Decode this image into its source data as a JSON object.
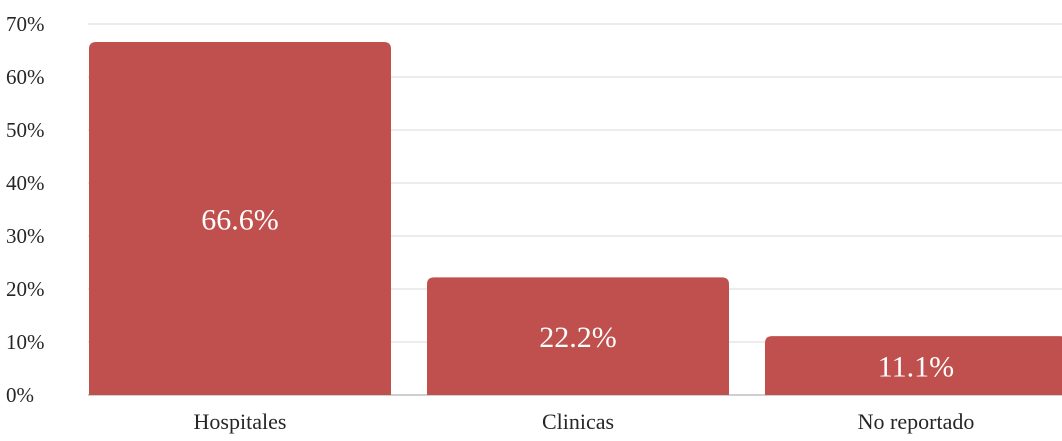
{
  "chart_data": {
    "type": "bar",
    "categories": [
      "Hospitales",
      "Clinicas",
      "No reportado"
    ],
    "values": [
      66.6,
      22.2,
      11.1
    ],
    "data_labels": [
      "66.6%",
      "22.2%",
      "11.1%"
    ],
    "yticks": [
      "0%",
      "10%",
      "20%",
      "30%",
      "40%",
      "50%",
      "60%",
      "70%"
    ],
    "ylim": [
      0,
      70
    ],
    "grid": true,
    "colors": {
      "bar": "#c0504d",
      "grid": "#d9d9d9",
      "text": "#262626",
      "data_label": "#ffffff"
    }
  }
}
